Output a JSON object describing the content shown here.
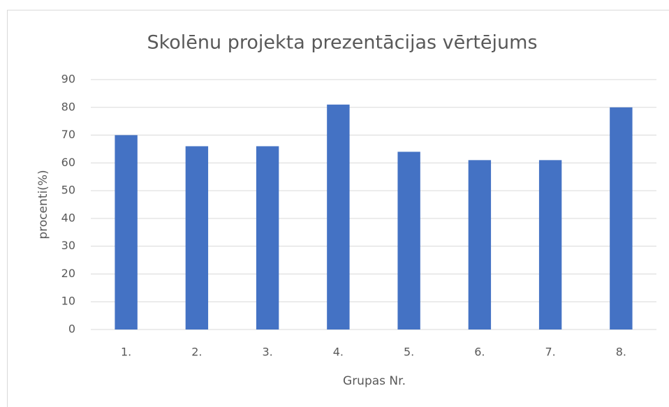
{
  "chart_data": {
    "type": "bar",
    "title": "Skolēnu projekta prezentācijas vērtējums",
    "x_label": "Grupas Nr.",
    "y_label": "procenti(%)",
    "categories": [
      "1.",
      "2.",
      "3.",
      "4.",
      "5.",
      "6.",
      "7.",
      "8."
    ],
    "values": [
      70,
      66,
      66,
      81,
      64,
      61,
      61,
      80
    ],
    "color": "#4472c4",
    "ylim": [
      0,
      90
    ],
    "yticks": [
      0,
      10,
      20,
      30,
      40,
      50,
      60,
      70,
      80,
      90
    ],
    "grid": true
  }
}
